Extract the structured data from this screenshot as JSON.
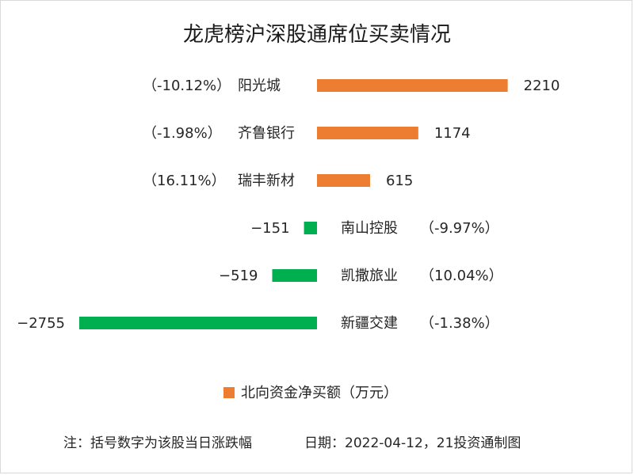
{
  "chart_data": {
    "type": "bar",
    "orientation": "horizontal",
    "title": "龙虎榜沪深股通席位买卖情况",
    "categories": [
      "阳光城",
      "齐鲁银行",
      "瑞丰新材",
      "南山控股",
      "凯撒旅业",
      "新疆交建"
    ],
    "changes": [
      "（-10.12%）",
      "（-1.98%）",
      "（16.11%）",
      "（-9.97%）",
      "（10.04%）",
      "（-1.38%）"
    ],
    "series": [
      {
        "name": "北向资金净买额（万元）",
        "values": [
          2210,
          1174,
          615,
          -151,
          -519,
          -2755
        ]
      }
    ],
    "legend_position": "bottom",
    "colors": {
      "positive": "#ED7D31",
      "negative": "#00B050"
    },
    "grid": false
  },
  "footer": {
    "note": "注：括号数字为该股当日涨跌幅",
    "date": "日期：2022-04-12，21投资通制图"
  }
}
